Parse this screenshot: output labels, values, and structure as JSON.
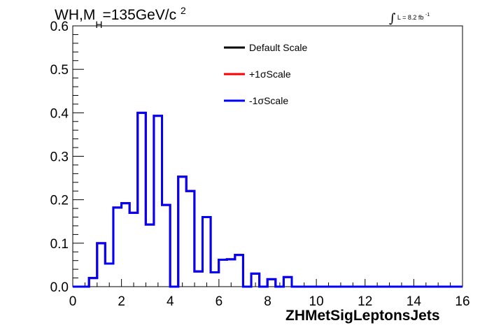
{
  "title": {
    "prefix": "WH,M",
    "subscript": "H",
    "value": "=135GeV/c",
    "superscript": "2"
  },
  "luminosity": {
    "symbol": "∫",
    "text": "L = 8.2 fb",
    "superscript": "-1"
  },
  "chart_data": {
    "type": "histogram-step",
    "xlabel": "ZHMetSigLeptonsJets",
    "ylabel": "",
    "xlim": [
      0,
      16
    ],
    "ylim": [
      0,
      0.6
    ],
    "x_ticks": [
      "0",
      "2",
      "4",
      "6",
      "8",
      "10",
      "12",
      "14",
      "16"
    ],
    "y_ticks": [
      "0.0",
      "0.1",
      "0.2",
      "0.3",
      "0.4",
      "0.5",
      "0.6"
    ],
    "bin_width": 0.333,
    "bin_edges_start": 0,
    "legend_position": "top-center",
    "series": [
      {
        "name": "Default Scale",
        "color": "#000000",
        "values": [
          0,
          0,
          0.02,
          0.1,
          0.053,
          0.182,
          0.192,
          0.17,
          0.4,
          0.143,
          0.393,
          0.188,
          0,
          0.253,
          0.22,
          0.035,
          0.16,
          0.033,
          0.062,
          0.063,
          0.073,
          0,
          0.03,
          0,
          0.017,
          0,
          0.022,
          0,
          0,
          0,
          0,
          0,
          0,
          0,
          0,
          0,
          0,
          0,
          0,
          0,
          0,
          0,
          0,
          0,
          0,
          0,
          0,
          0
        ]
      },
      {
        "name": "+1σScale",
        "color": "#ff0000",
        "values": [
          0,
          0,
          0.02,
          0.1,
          0.053,
          0.182,
          0.192,
          0.17,
          0.4,
          0.143,
          0.393,
          0.188,
          0,
          0.253,
          0.22,
          0.035,
          0.16,
          0.033,
          0.062,
          0.063,
          0.073,
          0,
          0.03,
          0,
          0.017,
          0,
          0.022,
          0,
          0,
          0,
          0,
          0,
          0,
          0,
          0,
          0,
          0,
          0,
          0,
          0,
          0,
          0,
          0,
          0,
          0,
          0,
          0,
          0
        ]
      },
      {
        "name": "-1σScale",
        "color": "#0000ff",
        "values": [
          0,
          0,
          0.02,
          0.1,
          0.053,
          0.182,
          0.192,
          0.17,
          0.4,
          0.143,
          0.393,
          0.188,
          0,
          0.253,
          0.22,
          0.035,
          0.16,
          0.033,
          0.062,
          0.063,
          0.073,
          0,
          0.03,
          0,
          0.017,
          0,
          0.022,
          0,
          0,
          0,
          0,
          0,
          0,
          0,
          0,
          0,
          0,
          0,
          0,
          0,
          0,
          0,
          0,
          0,
          0,
          0,
          0,
          0
        ]
      }
    ]
  }
}
